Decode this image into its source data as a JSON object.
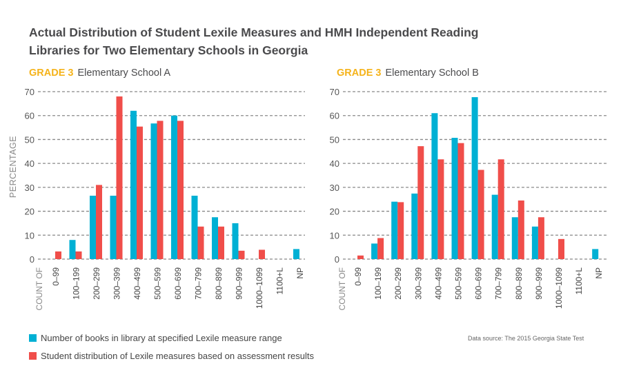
{
  "title_line1": "Actual Distribution of Student Lexile Measures and HMH Independent Reading",
  "title_line2": "Libraries for Two Elementary Schools in Georgia",
  "source": "Data source: The 2015 Georgia State Test",
  "colors": {
    "books": "#00b0d4",
    "students": "#f04e4a",
    "grade": "#f5b31a"
  },
  "legend": [
    {
      "label": "Number of books in library at specified Lexile measure range",
      "color": "#00b0d4"
    },
    {
      "label": "Student distribution of Lexile measures based on assessment results",
      "color": "#f04e4a"
    }
  ],
  "chart_data": [
    {
      "type": "bar",
      "grade": "GRADE 3",
      "title": "Elementary School A",
      "ylabel": "PERCENTAGE",
      "xlabel_prefix": "COUNT OF",
      "ylim": [
        0,
        70
      ],
      "yticks": [
        0,
        10,
        20,
        30,
        40,
        50,
        60,
        70
      ],
      "grid": true,
      "categories": [
        "0–99",
        "100–199",
        "200–299",
        "300–399",
        "400–499",
        "500–599",
        "600–699",
        "700–799",
        "800–899",
        "900–999",
        "1000–1099",
        "1100+L",
        "NP"
      ],
      "series": [
        {
          "name": "Number of books in library at specified Lexile measure range",
          "values": [
            0,
            8,
            26.5,
            26.5,
            62,
            56.7,
            60,
            26.5,
            17.5,
            15,
            0,
            0,
            4.2
          ]
        },
        {
          "name": "Student distribution of Lexile measures based on assessment results",
          "values": [
            3.2,
            3.2,
            31,
            68,
            55.4,
            57.8,
            57.8,
            13.6,
            13.6,
            3.5,
            3.9,
            0,
            0
          ]
        }
      ]
    },
    {
      "type": "bar",
      "grade": "GRADE 3",
      "title": "Elementary School B",
      "xlabel_prefix": "COUNT OF",
      "ylim": [
        0,
        70
      ],
      "yticks": [
        0,
        10,
        20,
        30,
        40,
        50,
        60,
        70
      ],
      "grid": true,
      "categories": [
        "0–99",
        "100–199",
        "200–299",
        "300–399",
        "400–499",
        "500–599",
        "600–699",
        "700–799",
        "800–899",
        "900–999",
        "1000–1099",
        "1100+L",
        "NP"
      ],
      "series": [
        {
          "name": "Number of books in library at specified Lexile measure range",
          "values": [
            0,
            6.5,
            24,
            27.4,
            61,
            50.7,
            67.7,
            26.9,
            17.5,
            13.6,
            0,
            0,
            4.2
          ]
        },
        {
          "name": "Student distribution of Lexile measures based on assessment results",
          "values": [
            1.5,
            8.8,
            23.8,
            47.2,
            41.7,
            48.5,
            37.3,
            41.7,
            24.5,
            17.5,
            8.4,
            0,
            0
          ]
        }
      ]
    }
  ]
}
